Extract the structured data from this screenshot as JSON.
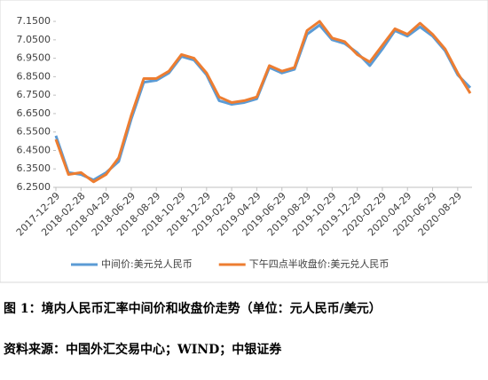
{
  "chart_data": {
    "type": "line",
    "categories": [
      "2017-12-29",
      null,
      "2018-02-28",
      null,
      "2018-04-29",
      null,
      "2018-06-29",
      null,
      "2018-08-29",
      null,
      "2018-10-29",
      null,
      "2018-12-29",
      null,
      "2019-02-28",
      null,
      "2019-04-29",
      null,
      "2019-06-29",
      null,
      "2019-08-29",
      null,
      "2019-10-29",
      null,
      "2019-12-29",
      null,
      "2020-02-29",
      null,
      "2020-04-29",
      null,
      "2020-06-29",
      null,
      "2020-08-29",
      null
    ],
    "series": [
      {
        "name": "中间价:美元兑人民币",
        "color": "#5b9bd5",
        "values": [
          6.53,
          6.33,
          6.32,
          6.29,
          6.33,
          6.39,
          6.62,
          6.82,
          6.83,
          6.87,
          6.96,
          6.94,
          6.86,
          6.72,
          6.7,
          6.71,
          6.73,
          6.9,
          6.87,
          6.89,
          7.08,
          7.13,
          7.05,
          7.03,
          6.98,
          6.91,
          7.0,
          7.1,
          7.07,
          7.12,
          7.07,
          6.99,
          6.86,
          6.79
        ]
      },
      {
        "name": "下午四点半收盘价:美元兑人民币",
        "color": "#ed7d31",
        "values": [
          6.51,
          6.32,
          6.33,
          6.28,
          6.32,
          6.41,
          6.64,
          6.84,
          6.84,
          6.88,
          6.97,
          6.95,
          6.87,
          6.74,
          6.71,
          6.72,
          6.74,
          6.91,
          6.88,
          6.9,
          7.1,
          7.15,
          7.06,
          7.04,
          6.97,
          6.93,
          7.02,
          7.11,
          7.08,
          7.14,
          7.08,
          7.0,
          6.87,
          6.76
        ]
      }
    ],
    "ylim": [
      6.25,
      7.2
    ],
    "yticks": [
      {
        "value": 6.25,
        "label": "6.2500"
      },
      {
        "value": 6.35,
        "label": "6.3500"
      },
      {
        "value": 6.45,
        "label": "6.4500"
      },
      {
        "value": 6.55,
        "label": "6.5500"
      },
      {
        "value": 6.65,
        "label": "6.6500"
      },
      {
        "value": 6.75,
        "label": "6.7500"
      },
      {
        "value": 6.85,
        "label": "6.8500"
      },
      {
        "value": 6.95,
        "label": "6.9500"
      },
      {
        "value": 7.05,
        "label": "7.0500"
      },
      {
        "value": 7.15,
        "label": "7.1500"
      }
    ],
    "legend": "bottom"
  },
  "caption": "图 1：境内人民币汇率中间价和收盘价走势（单位：元人民币/美元）",
  "source": "资料来源：中国外汇交易中心；WIND；中银证券"
}
